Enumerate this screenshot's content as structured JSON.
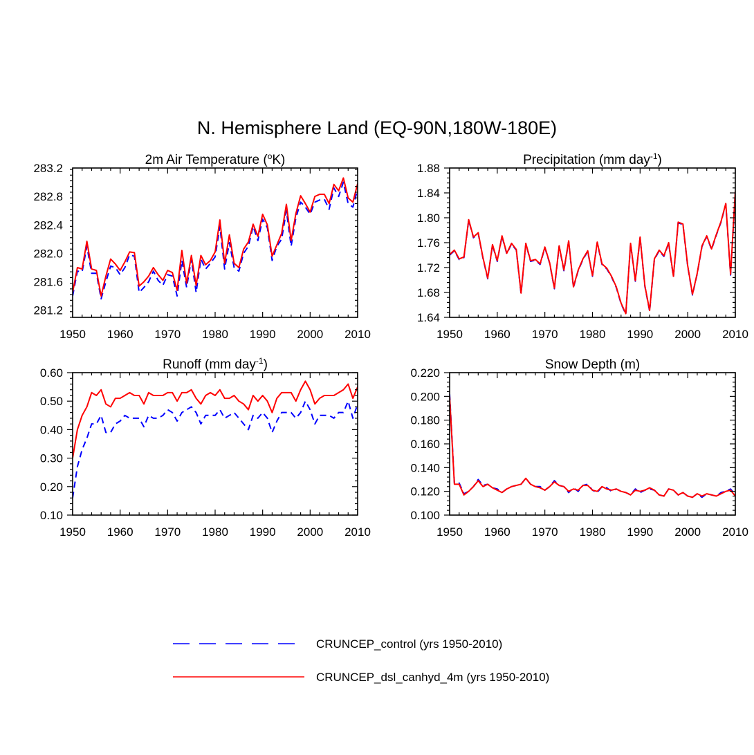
{
  "title": "N. Hemisphere Land (EQ-90N,180W-180E)",
  "series_styles": [
    {
      "name": "CRUNCEP_control (yrs 1950-2010)",
      "color": "#0000ff",
      "dash": "dashed"
    },
    {
      "name": "CRUNCEP_dsl_canhyd_4m (yrs 1950-2010)",
      "color": "#ff0000",
      "dash": "solid"
    }
  ],
  "legend": {
    "control": "CRUNCEP_control (yrs 1950-2010)",
    "dsl": "CRUNCEP_dsl_canhyd_4m (yrs 1950-2010)"
  },
  "panels": [
    {
      "title_main": "2m Air Temperature (",
      "title_sup": "o",
      "title_end": "K)"
    },
    {
      "title_main": "Precipitation (mm day",
      "title_sup": "-1",
      "title_end": ")"
    },
    {
      "title_main": "Runoff (mm day",
      "title_sup": "-1",
      "title_end": ")"
    },
    {
      "title_main": "Snow Depth (m)",
      "title_sup": "",
      "title_end": ""
    }
  ],
  "chart_data": [
    {
      "type": "line",
      "title": "2m Air Temperature (oK)",
      "xlabel": "",
      "ylabel": "",
      "xlim": [
        1950,
        2010
      ],
      "ylim": [
        281.1,
        283.2
      ],
      "xticks": [
        1950,
        1960,
        1970,
        1980,
        1990,
        2000,
        2010
      ],
      "xtick_labels": [
        "1950",
        "1960",
        "1970",
        "1980",
        "1990",
        "2000",
        "2010"
      ],
      "yticks": [
        281.2,
        281.6,
        282.0,
        282.4,
        282.8,
        283.2
      ],
      "ytick_labels": [
        "281.2",
        "281.6",
        "282.0",
        "282.4",
        "282.8",
        "283.2"
      ],
      "x_start": 1950,
      "series": [
        {
          "name": "CRUNCEP_control (yrs 1950-2010)",
          "values": [
            281.4,
            281.75,
            281.74,
            282.1,
            281.72,
            281.72,
            281.36,
            281.6,
            281.82,
            281.8,
            281.7,
            281.8,
            281.98,
            281.96,
            281.45,
            281.52,
            281.6,
            281.75,
            281.62,
            281.55,
            281.7,
            281.68,
            281.4,
            281.9,
            281.52,
            281.92,
            281.45,
            281.92,
            281.78,
            281.86,
            281.95,
            282.38,
            281.78,
            282.15,
            281.8,
            281.75,
            282.0,
            282.1,
            282.38,
            282.18,
            282.48,
            282.36,
            281.9,
            282.1,
            282.2,
            282.6,
            282.1,
            282.5,
            282.72,
            282.65,
            282.55,
            282.72,
            282.75,
            282.76,
            282.62,
            282.92,
            282.8,
            283.0,
            282.7,
            282.65,
            282.9
          ]
        },
        {
          "name": "CRUNCEP_dsl_canhyd_4m (yrs 1950-2010)",
          "values": [
            281.45,
            281.8,
            281.78,
            282.17,
            281.78,
            281.76,
            281.4,
            281.68,
            281.92,
            281.85,
            281.76,
            281.88,
            282.02,
            282.01,
            281.54,
            281.6,
            281.68,
            281.8,
            281.7,
            281.62,
            281.76,
            281.73,
            281.48,
            282.04,
            281.58,
            281.97,
            281.55,
            281.97,
            281.84,
            281.9,
            282.02,
            282.47,
            281.86,
            282.26,
            281.86,
            281.8,
            282.06,
            282.16,
            282.41,
            282.24,
            282.55,
            282.4,
            281.96,
            282.12,
            282.28,
            282.69,
            282.18,
            282.56,
            282.81,
            282.7,
            282.58,
            282.8,
            282.83,
            282.83,
            282.7,
            282.97,
            282.88,
            283.06,
            282.78,
            282.72,
            282.98
          ]
        }
      ]
    },
    {
      "type": "line",
      "title": "Precipitation (mm day-1)",
      "xlabel": "",
      "ylabel": "",
      "xlim": [
        1950,
        2010
      ],
      "ylim": [
        1.64,
        1.88
      ],
      "xticks": [
        1950,
        1960,
        1970,
        1980,
        1990,
        2000,
        2010
      ],
      "xtick_labels": [
        "1950",
        "1960",
        "1970",
        "1980",
        "1990",
        "2000",
        "2010"
      ],
      "yticks": [
        1.64,
        1.68,
        1.72,
        1.76,
        1.8,
        1.84,
        1.88
      ],
      "ytick_labels": [
        "1.64",
        "1.68",
        "1.72",
        "1.76",
        "1.80",
        "1.84",
        "1.88"
      ],
      "x_start": 1950,
      "series": [
        {
          "name": "CRUNCEP_control (yrs 1950-2010)",
          "values": [
            1.74,
            1.747,
            1.733,
            1.736,
            1.796,
            1.768,
            1.775,
            1.735,
            1.702,
            1.756,
            1.73,
            1.77,
            1.742,
            1.758,
            1.748,
            1.678,
            1.758,
            1.73,
            1.732,
            1.725,
            1.752,
            1.727,
            1.686,
            1.754,
            1.715,
            1.762,
            1.688,
            1.715,
            1.733,
            1.746,
            1.706,
            1.76,
            1.725,
            1.718,
            1.705,
            1.688,
            1.662,
            1.645,
            1.758,
            1.698,
            1.768,
            1.69,
            1.65,
            1.733,
            1.747,
            1.738,
            1.759,
            1.705,
            1.792,
            1.789,
            1.722,
            1.676,
            1.71,
            1.754,
            1.77,
            1.749,
            1.772,
            1.793,
            1.822,
            1.708,
            1.842
          ]
        },
        {
          "name": "CRUNCEP_dsl_canhyd_4m (yrs 1950-2010)",
          "values": [
            1.741,
            1.748,
            1.734,
            1.737,
            1.797,
            1.769,
            1.776,
            1.736,
            1.703,
            1.757,
            1.731,
            1.771,
            1.743,
            1.759,
            1.749,
            1.679,
            1.759,
            1.731,
            1.733,
            1.726,
            1.753,
            1.728,
            1.687,
            1.755,
            1.716,
            1.763,
            1.689,
            1.716,
            1.734,
            1.747,
            1.707,
            1.761,
            1.726,
            1.719,
            1.706,
            1.689,
            1.663,
            1.646,
            1.759,
            1.699,
            1.769,
            1.691,
            1.651,
            1.734,
            1.748,
            1.739,
            1.76,
            1.706,
            1.793,
            1.79,
            1.723,
            1.677,
            1.711,
            1.755,
            1.771,
            1.75,
            1.773,
            1.794,
            1.823,
            1.709,
            1.843
          ]
        }
      ]
    },
    {
      "type": "line",
      "title": "Runoff (mm day-1)",
      "xlabel": "",
      "ylabel": "",
      "xlim": [
        1950,
        2010
      ],
      "ylim": [
        0.1,
        0.6
      ],
      "xticks": [
        1950,
        1960,
        1970,
        1980,
        1990,
        2000,
        2010
      ],
      "xtick_labels": [
        "1950",
        "1960",
        "1970",
        "1980",
        "1990",
        "2000",
        "2010"
      ],
      "yticks": [
        0.1,
        0.2,
        0.3,
        0.4,
        0.5,
        0.6
      ],
      "ytick_labels": [
        "0.10",
        "0.20",
        "0.30",
        "0.40",
        "0.50",
        "0.60"
      ],
      "x_start": 1950,
      "series": [
        {
          "name": "CRUNCEP_control (yrs 1950-2010)",
          "values": [
            0.16,
            0.27,
            0.33,
            0.37,
            0.42,
            0.42,
            0.45,
            0.39,
            0.39,
            0.42,
            0.43,
            0.45,
            0.44,
            0.44,
            0.44,
            0.41,
            0.45,
            0.44,
            0.44,
            0.45,
            0.47,
            0.46,
            0.43,
            0.46,
            0.47,
            0.48,
            0.46,
            0.42,
            0.45,
            0.45,
            0.45,
            0.47,
            0.44,
            0.45,
            0.46,
            0.44,
            0.42,
            0.4,
            0.45,
            0.44,
            0.46,
            0.44,
            0.39,
            0.43,
            0.46,
            0.46,
            0.46,
            0.44,
            0.46,
            0.5,
            0.47,
            0.42,
            0.45,
            0.45,
            0.45,
            0.44,
            0.46,
            0.46,
            0.5,
            0.44,
            0.49
          ]
        },
        {
          "name": "CRUNCEP_dsl_canhyd_4m (yrs 1950-2010)",
          "values": [
            0.3,
            0.4,
            0.45,
            0.48,
            0.53,
            0.52,
            0.54,
            0.49,
            0.48,
            0.51,
            0.51,
            0.52,
            0.53,
            0.52,
            0.52,
            0.49,
            0.53,
            0.52,
            0.52,
            0.52,
            0.53,
            0.53,
            0.5,
            0.53,
            0.53,
            0.54,
            0.51,
            0.49,
            0.52,
            0.53,
            0.52,
            0.54,
            0.51,
            0.51,
            0.52,
            0.5,
            0.49,
            0.47,
            0.52,
            0.5,
            0.52,
            0.5,
            0.46,
            0.51,
            0.53,
            0.53,
            0.53,
            0.5,
            0.54,
            0.57,
            0.54,
            0.49,
            0.51,
            0.52,
            0.52,
            0.52,
            0.53,
            0.54,
            0.56,
            0.51,
            0.55
          ]
        }
      ]
    },
    {
      "type": "line",
      "title": "Snow Depth (m)",
      "xlabel": "",
      "ylabel": "",
      "xlim": [
        1950,
        2010
      ],
      "ylim": [
        0.1,
        0.22
      ],
      "xticks": [
        1950,
        1960,
        1970,
        1980,
        1990,
        2000,
        2010
      ],
      "xtick_labels": [
        "1950",
        "1960",
        "1970",
        "1980",
        "1990",
        "2000",
        "2010"
      ],
      "yticks": [
        0.1,
        0.12,
        0.14,
        0.16,
        0.18,
        0.2,
        0.22
      ],
      "ytick_labels": [
        "0.100",
        "0.120",
        "0.140",
        "0.160",
        "0.180",
        "0.200",
        "0.220"
      ],
      "x_start": 1950,
      "series": [
        {
          "name": "CRUNCEP_control (yrs 1950-2010)",
          "values": [
            0.202,
            0.127,
            0.127,
            0.118,
            0.12,
            0.124,
            0.13,
            0.125,
            0.126,
            0.123,
            0.122,
            0.119,
            0.122,
            0.124,
            0.125,
            0.126,
            0.131,
            0.126,
            0.124,
            0.124,
            0.121,
            0.124,
            0.129,
            0.125,
            0.124,
            0.119,
            0.123,
            0.12,
            0.125,
            0.126,
            0.121,
            0.119,
            0.124,
            0.123,
            0.12,
            0.122,
            0.12,
            0.119,
            0.117,
            0.122,
            0.119,
            0.121,
            0.122,
            0.121,
            0.117,
            0.116,
            0.122,
            0.121,
            0.117,
            0.119,
            0.116,
            0.115,
            0.118,
            0.115,
            0.118,
            0.117,
            0.116,
            0.119,
            0.12,
            0.122,
            0.117
          ]
        },
        {
          "name": "CRUNCEP_dsl_canhyd_4m (yrs 1950-2010)",
          "values": [
            0.2,
            0.126,
            0.126,
            0.117,
            0.12,
            0.124,
            0.129,
            0.124,
            0.126,
            0.123,
            0.121,
            0.119,
            0.122,
            0.124,
            0.125,
            0.126,
            0.131,
            0.126,
            0.124,
            0.123,
            0.121,
            0.124,
            0.128,
            0.125,
            0.124,
            0.12,
            0.122,
            0.121,
            0.125,
            0.125,
            0.121,
            0.12,
            0.124,
            0.122,
            0.121,
            0.122,
            0.12,
            0.119,
            0.117,
            0.121,
            0.12,
            0.121,
            0.123,
            0.121,
            0.117,
            0.116,
            0.122,
            0.121,
            0.117,
            0.119,
            0.116,
            0.115,
            0.118,
            0.116,
            0.118,
            0.117,
            0.116,
            0.118,
            0.12,
            0.121,
            0.116
          ]
        }
      ]
    }
  ]
}
